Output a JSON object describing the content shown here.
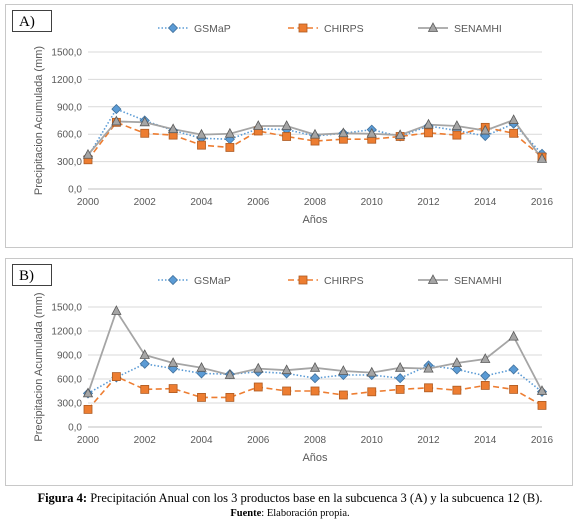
{
  "chart_data": [
    {
      "type": "line",
      "panel_label": "A)",
      "xlabel": "Años",
      "ylabel": "Precipitacion Acumulada (mm)",
      "x": [
        2000,
        2001,
        2002,
        2003,
        2004,
        2005,
        2006,
        2007,
        2008,
        2009,
        2010,
        2011,
        2012,
        2013,
        2014,
        2015,
        2016
      ],
      "x_ticks": [
        "2000",
        "2002",
        "2004",
        "2006",
        "2008",
        "2010",
        "2012",
        "2014",
        "2016"
      ],
      "y_ticks": [
        "0,0",
        "300,0",
        "600,0",
        "900,0",
        "1200,0",
        "1500,0"
      ],
      "ylim": [
        0,
        1500
      ],
      "grid": true,
      "legend_position": "top",
      "series": [
        {
          "name": "GSMaP",
          "color": "#5b9bd5",
          "marker": "diamond",
          "line": "dotted",
          "values": [
            355,
            875,
            750,
            640,
            555,
            545,
            660,
            650,
            580,
            610,
            650,
            575,
            690,
            640,
            580,
            715,
            385
          ]
        },
        {
          "name": "CHIRPS",
          "color": "#ed7d31",
          "marker": "square",
          "line": "dashed",
          "values": [
            320,
            730,
            610,
            590,
            480,
            455,
            635,
            575,
            525,
            545,
            545,
            575,
            615,
            590,
            675,
            610,
            350
          ]
        },
        {
          "name": "SENAMHI",
          "color": "#a5a5a5",
          "marker": "triangle",
          "line": "solid",
          "values": [
            375,
            740,
            730,
            655,
            595,
            605,
            690,
            690,
            595,
            610,
            605,
            590,
            705,
            690,
            640,
            755,
            330
          ]
        }
      ]
    },
    {
      "type": "line",
      "panel_label": "B)",
      "xlabel": "Años",
      "ylabel": "Precipitacion Acumulada (mm)",
      "x": [
        2000,
        2001,
        2002,
        2003,
        2004,
        2005,
        2006,
        2007,
        2008,
        2009,
        2010,
        2011,
        2012,
        2013,
        2014,
        2015,
        2016
      ],
      "x_ticks": [
        "2000",
        "2002",
        "2004",
        "2006",
        "2008",
        "2010",
        "2012",
        "2014",
        "2016"
      ],
      "y_ticks": [
        "0,0",
        "300,0",
        "600,0",
        "900,0",
        "1200,0",
        "1500,0"
      ],
      "ylim": [
        0,
        1500
      ],
      "grid": true,
      "legend_position": "top",
      "series": [
        {
          "name": "GSMaP",
          "color": "#5b9bd5",
          "marker": "diamond",
          "line": "dotted",
          "values": [
            420,
            620,
            790,
            730,
            670,
            660,
            690,
            670,
            610,
            650,
            650,
            610,
            770,
            720,
            640,
            720,
            440
          ]
        },
        {
          "name": "CHIRPS",
          "color": "#ed7d31",
          "marker": "square",
          "line": "dashed",
          "values": [
            220,
            630,
            470,
            480,
            370,
            370,
            500,
            450,
            450,
            400,
            440,
            470,
            490,
            460,
            520,
            470,
            270
          ]
        },
        {
          "name": "SENAMHI",
          "color": "#a5a5a5",
          "marker": "triangle",
          "line": "solid",
          "values": [
            420,
            1450,
            900,
            800,
            740,
            650,
            730,
            710,
            740,
            700,
            680,
            740,
            730,
            800,
            850,
            1130,
            450
          ]
        }
      ]
    }
  ],
  "caption": {
    "figure_bold": "Figura 4:",
    "figure_text": " Precipitación Anual con los 3 productos base en la subcuenca 3 (A) y la subcuenca 12 (B).",
    "source_bold": "Fuente",
    "source_text": ": Elaboración propia."
  }
}
